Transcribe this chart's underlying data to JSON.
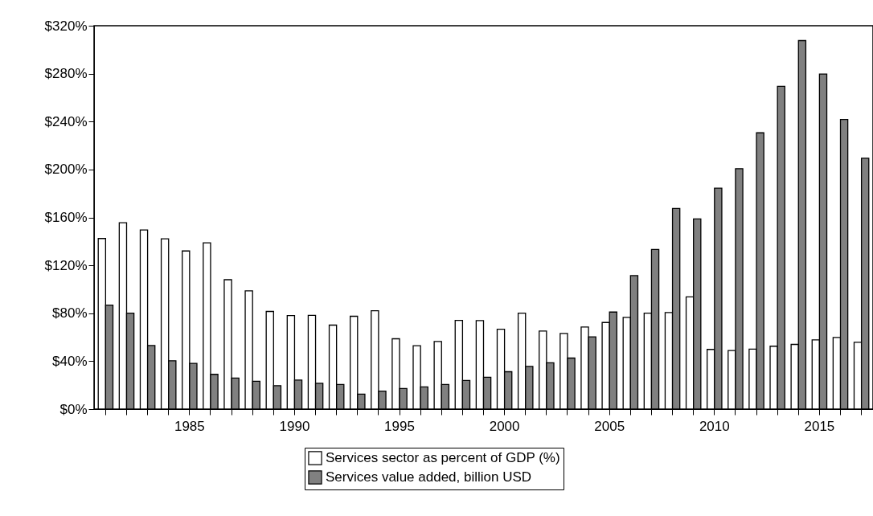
{
  "chart_data": {
    "type": "bar",
    "categories": [
      null,
      null,
      null,
      null,
      "1985",
      null,
      null,
      null,
      null,
      "1990",
      null,
      null,
      null,
      null,
      "1995",
      null,
      null,
      null,
      null,
      "2000",
      null,
      null,
      null,
      null,
      "2005",
      null,
      null,
      null,
      null,
      "2010",
      null,
      null,
      null,
      null,
      "2015",
      null,
      null
    ],
    "series": [
      {
        "name": "Services sector as percent of GDP (%)",
        "color": "#ffffff",
        "values": [
          142.4,
          155.6,
          149.5,
          142.2,
          132,
          138.8,
          108,
          98.7,
          81.5,
          78.1,
          78.3,
          70.1,
          77.5,
          82.1,
          58.7,
          52.9,
          56.5,
          74.1,
          73.9,
          66.7,
          80.1,
          65.2,
          63.2,
          68.5,
          72.3,
          76.6,
          80.1,
          80.6,
          93.7,
          49.8,
          48.9,
          50,
          52.5,
          54,
          57.8,
          59.8,
          55.8
        ]
      },
      {
        "name": "Services value added, billion USD",
        "color": "#808080",
        "values": [
          86.8,
          80.1,
          53.1,
          40.4,
          38.2,
          29,
          25.9,
          23.2,
          19.6,
          24.3,
          21.6,
          20.5,
          12.5,
          15,
          17.2,
          18.5,
          20.5,
          23.9,
          26.6,
          31.2,
          35.7,
          38.6,
          42.6,
          60.3,
          81,
          111.4,
          133.3,
          167.4,
          158.7,
          184.4,
          200.7,
          230.6,
          269.4,
          307.6,
          279.7,
          241.7,
          209.4
        ]
      }
    ],
    "ylim": [
      0,
      320
    ],
    "yticks": [
      {
        "value": 0,
        "label": "$0%"
      },
      {
        "value": 40,
        "label": "$40%"
      },
      {
        "value": 80,
        "label": "$80%"
      },
      {
        "value": 120,
        "label": "$120%"
      },
      {
        "value": 160,
        "label": "$160%"
      },
      {
        "value": 200,
        "label": "$200%"
      },
      {
        "value": 240,
        "label": "$240%"
      },
      {
        "value": 280,
        "label": "$280%"
      },
      {
        "value": 320,
        "label": "$320%"
      }
    ],
    "grid": false,
    "legend": "bottom"
  }
}
